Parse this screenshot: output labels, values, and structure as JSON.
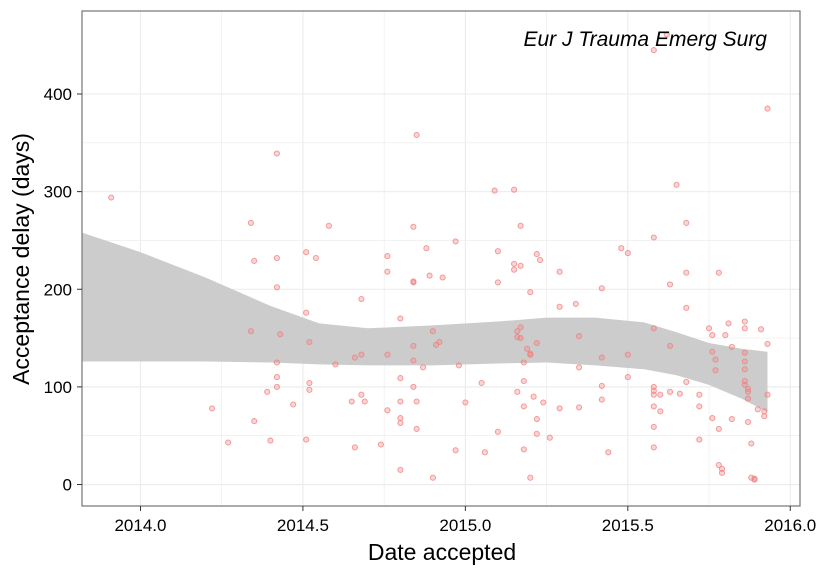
{
  "chart_data": {
    "type": "scatter",
    "annotation": "Eur J Trauma Emerg Surg",
    "xlabel": "Date accepted",
    "ylabel": "Acceptance delay (days)",
    "xlim": [
      2013.82,
      2016.03
    ],
    "ylim": [
      -22,
      485
    ],
    "x_ticks": [
      2014.0,
      2014.5,
      2015.0,
      2015.5,
      2016.0
    ],
    "x_tick_labels": [
      "2014.0",
      "2014.5",
      "2015.0",
      "2015.5",
      "2016.0"
    ],
    "y_ticks": [
      0,
      100,
      200,
      300,
      400
    ],
    "y_tick_labels": [
      "0",
      "100",
      "200",
      "300",
      "400"
    ],
    "grid": true,
    "colors": {
      "points": "#f08080",
      "band": "#cccccc",
      "grid": "#ebebeb",
      "border": "#7f7f7f"
    },
    "confidence_band": {
      "x": [
        2013.82,
        2014.0,
        2014.2,
        2014.4,
        2014.55,
        2014.7,
        2014.9,
        2015.1,
        2015.25,
        2015.4,
        2015.55,
        2015.65,
        2015.75,
        2015.85,
        2015.93
      ],
      "upper": [
        258,
        238,
        212,
        183,
        165,
        160,
        163,
        167,
        171,
        171,
        166,
        156,
        145,
        139,
        136
      ],
      "lower": [
        126,
        126,
        126,
        125,
        123,
        122,
        122,
        124,
        125,
        122,
        118,
        112,
        102,
        88,
        74
      ]
    },
    "points": [
      [
        2013.91,
        294
      ],
      [
        2014.22,
        78
      ],
      [
        2014.27,
        43
      ],
      [
        2014.34,
        268
      ],
      [
        2014.35,
        229
      ],
      [
        2014.34,
        157
      ],
      [
        2014.35,
        65
      ],
      [
        2014.39,
        95
      ],
      [
        2014.4,
        45
      ],
      [
        2014.42,
        339
      ],
      [
        2014.42,
        232
      ],
      [
        2014.42,
        202
      ],
      [
        2014.42,
        125
      ],
      [
        2014.42,
        110
      ],
      [
        2014.42,
        100
      ],
      [
        2014.43,
        154
      ],
      [
        2014.47,
        82
      ],
      [
        2014.51,
        238
      ],
      [
        2014.51,
        176
      ],
      [
        2014.51,
        46
      ],
      [
        2014.52,
        146
      ],
      [
        2014.52,
        104
      ],
      [
        2014.52,
        97
      ],
      [
        2014.54,
        232
      ],
      [
        2014.58,
        265
      ],
      [
        2014.6,
        123
      ],
      [
        2014.65,
        85
      ],
      [
        2014.66,
        38
      ],
      [
        2014.66,
        130
      ],
      [
        2014.68,
        190
      ],
      [
        2014.68,
        133
      ],
      [
        2014.68,
        92
      ],
      [
        2014.69,
        85
      ],
      [
        2014.74,
        41
      ],
      [
        2014.76,
        234
      ],
      [
        2014.76,
        218
      ],
      [
        2014.76,
        133
      ],
      [
        2014.76,
        76
      ],
      [
        2014.8,
        170
      ],
      [
        2014.8,
        109
      ],
      [
        2014.8,
        85
      ],
      [
        2014.8,
        68
      ],
      [
        2014.8,
        63
      ],
      [
        2014.8,
        15
      ],
      [
        2014.84,
        264
      ],
      [
        2014.84,
        208
      ],
      [
        2014.84,
        207
      ],
      [
        2014.84,
        142
      ],
      [
        2014.84,
        127
      ],
      [
        2014.84,
        100
      ],
      [
        2014.85,
        358
      ],
      [
        2014.85,
        85
      ],
      [
        2014.85,
        57
      ],
      [
        2014.87,
        120
      ],
      [
        2014.88,
        242
      ],
      [
        2014.89,
        214
      ],
      [
        2014.9,
        157
      ],
      [
        2014.9,
        7
      ],
      [
        2014.91,
        143
      ],
      [
        2014.92,
        146
      ],
      [
        2014.93,
        212
      ],
      [
        2014.97,
        249
      ],
      [
        2014.97,
        35
      ],
      [
        2014.98,
        122
      ],
      [
        2015.0,
        84
      ],
      [
        2015.05,
        104
      ],
      [
        2015.06,
        33
      ],
      [
        2015.09,
        301
      ],
      [
        2015.1,
        239
      ],
      [
        2015.1,
        54
      ],
      [
        2015.1,
        207
      ],
      [
        2015.15,
        302
      ],
      [
        2015.15,
        226
      ],
      [
        2015.15,
        220
      ],
      [
        2015.16,
        157
      ],
      [
        2015.16,
        151
      ],
      [
        2015.16,
        95
      ],
      [
        2015.17,
        265
      ],
      [
        2015.17,
        224
      ],
      [
        2015.17,
        161
      ],
      [
        2015.17,
        150
      ],
      [
        2015.18,
        125
      ],
      [
        2015.18,
        106
      ],
      [
        2015.18,
        80
      ],
      [
        2015.18,
        36
      ],
      [
        2015.19,
        139
      ],
      [
        2015.2,
        197
      ],
      [
        2015.2,
        134
      ],
      [
        2015.2,
        133
      ],
      [
        2015.2,
        7
      ],
      [
        2015.21,
        90
      ],
      [
        2015.22,
        236
      ],
      [
        2015.22,
        145
      ],
      [
        2015.22,
        67
      ],
      [
        2015.22,
        52
      ],
      [
        2015.23,
        230
      ],
      [
        2015.24,
        84
      ],
      [
        2015.26,
        48
      ],
      [
        2015.29,
        218
      ],
      [
        2015.29,
        182
      ],
      [
        2015.29,
        78
      ],
      [
        2015.34,
        185
      ],
      [
        2015.35,
        152
      ],
      [
        2015.35,
        120
      ],
      [
        2015.35,
        79
      ],
      [
        2015.42,
        201
      ],
      [
        2015.42,
        130
      ],
      [
        2015.42,
        101
      ],
      [
        2015.42,
        87
      ],
      [
        2015.44,
        33
      ],
      [
        2015.48,
        242
      ],
      [
        2015.5,
        237
      ],
      [
        2015.5,
        133
      ],
      [
        2015.5,
        110
      ],
      [
        2015.58,
        445
      ],
      [
        2015.58,
        253
      ],
      [
        2015.58,
        160
      ],
      [
        2015.58,
        100
      ],
      [
        2015.58,
        96
      ],
      [
        2015.58,
        92
      ],
      [
        2015.58,
        80
      ],
      [
        2015.58,
        59
      ],
      [
        2015.58,
        38
      ],
      [
        2015.6,
        92
      ],
      [
        2015.6,
        75
      ],
      [
        2015.62,
        461
      ],
      [
        2015.63,
        205
      ],
      [
        2015.63,
        142
      ],
      [
        2015.63,
        95
      ],
      [
        2015.65,
        307
      ],
      [
        2015.66,
        93
      ],
      [
        2015.68,
        268
      ],
      [
        2015.68,
        217
      ],
      [
        2015.68,
        181
      ],
      [
        2015.68,
        105
      ],
      [
        2015.72,
        92
      ],
      [
        2015.72,
        80
      ],
      [
        2015.72,
        46
      ],
      [
        2015.75,
        160
      ],
      [
        2015.76,
        153
      ],
      [
        2015.76,
        136
      ],
      [
        2015.76,
        68
      ],
      [
        2015.77,
        128
      ],
      [
        2015.77,
        117
      ],
      [
        2015.78,
        217
      ],
      [
        2015.78,
        57
      ],
      [
        2015.78,
        20
      ],
      [
        2015.79,
        16
      ],
      [
        2015.79,
        12
      ],
      [
        2015.8,
        153
      ],
      [
        2015.81,
        165
      ],
      [
        2015.82,
        141
      ],
      [
        2015.82,
        67
      ],
      [
        2015.86,
        167
      ],
      [
        2015.86,
        160
      ],
      [
        2015.86,
        135
      ],
      [
        2015.86,
        126
      ],
      [
        2015.86,
        118
      ],
      [
        2015.86,
        106
      ],
      [
        2015.86,
        102
      ],
      [
        2015.87,
        98
      ],
      [
        2015.87,
        95
      ],
      [
        2015.87,
        88
      ],
      [
        2015.87,
        64
      ],
      [
        2015.88,
        42
      ],
      [
        2015.88,
        7
      ],
      [
        2015.89,
        6
      ],
      [
        2015.89,
        5
      ],
      [
        2015.9,
        77
      ],
      [
        2015.91,
        159
      ],
      [
        2015.92,
        70
      ],
      [
        2015.93,
        385
      ],
      [
        2015.93,
        144
      ],
      [
        2015.93,
        92
      ],
      [
        2015.92,
        75
      ]
    ]
  }
}
